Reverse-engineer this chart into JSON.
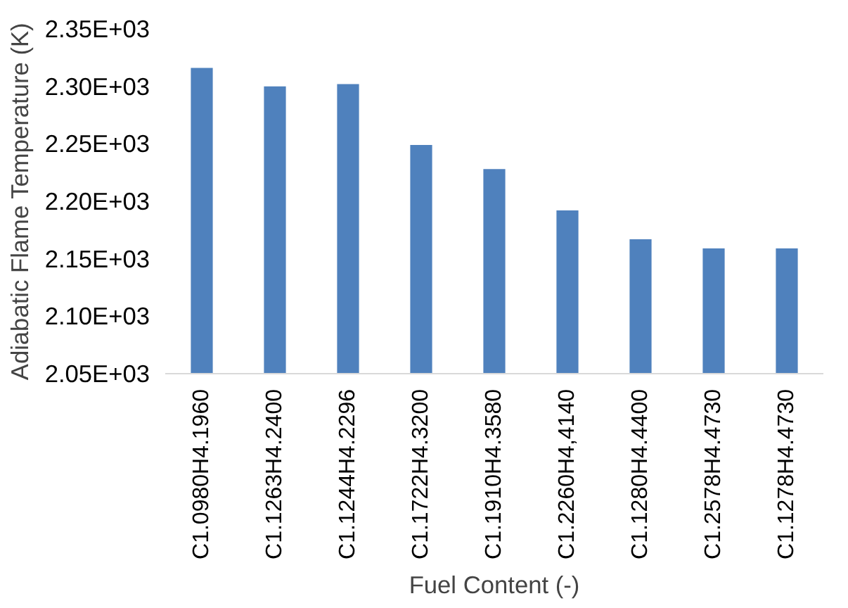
{
  "chart_data": {
    "type": "bar",
    "xlabel": "Fuel Content (-)",
    "ylabel": "Adiabatic Flame Temperature (K)",
    "categories": [
      "C1.0980H4.1960",
      "C1.1263H4.2400",
      "C1.1244H4.2296",
      "C1.1722H4.3200",
      "C1.1910H4.3580",
      "C1.2260H4,4140",
      "C1.1280H4.4400",
      "C1.2578H4.4730",
      "C1.1278H4.4730"
    ],
    "values": [
      2316,
      2300,
      2302,
      2249,
      2228,
      2192,
      2167,
      2159,
      2159
    ],
    "color": "#4f81bd",
    "ylim": [
      2050,
      2350
    ],
    "yticks": [
      {
        "value": 2050,
        "label": "2.05E+03"
      },
      {
        "value": 2100,
        "label": "2.10E+03"
      },
      {
        "value": 2150,
        "label": "2.15E+03"
      },
      {
        "value": 2200,
        "label": "2.20E+03"
      },
      {
        "value": 2250,
        "label": "2.25E+03"
      },
      {
        "value": 2300,
        "label": "2.30E+03"
      },
      {
        "value": 2350,
        "label": "2.35E+03"
      }
    ],
    "grid": false
  }
}
